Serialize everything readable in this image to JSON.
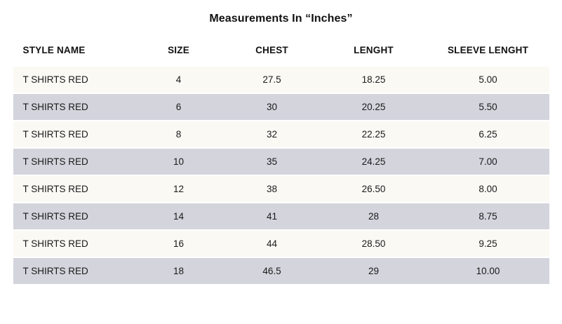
{
  "title": "Measurements In “Inches”",
  "chart_data": {
    "type": "table",
    "title": "Measurements In “Inches”",
    "columns": [
      "STYLE NAME",
      "SIZE",
      "CHEST",
      "LENGHT",
      "SLEEVE LENGHT"
    ],
    "rows": [
      [
        "T SHIRTS RED",
        "4",
        "27.5",
        "18.25",
        "5.00"
      ],
      [
        "T SHIRTS RED",
        "6",
        "30",
        "20.25",
        "5.50"
      ],
      [
        "T SHIRTS RED",
        "8",
        "32",
        "22.25",
        "6.25"
      ],
      [
        "T SHIRTS RED",
        "10",
        "35",
        "24.25",
        "7.00"
      ],
      [
        "T SHIRTS RED",
        "12",
        "38",
        "26.50",
        "8.00"
      ],
      [
        "T SHIRTS RED",
        "14",
        "41",
        "28",
        "8.75"
      ],
      [
        "T SHIRTS RED",
        "16",
        "44",
        "28.50",
        "9.25"
      ],
      [
        "T SHIRTS RED",
        "18",
        "46.5",
        "29",
        "10.00"
      ]
    ]
  },
  "colors": {
    "row_light": "#fbf9f4",
    "row_alt": "#d3d4dc",
    "text": "#171717",
    "page_background": "#ffffff"
  }
}
